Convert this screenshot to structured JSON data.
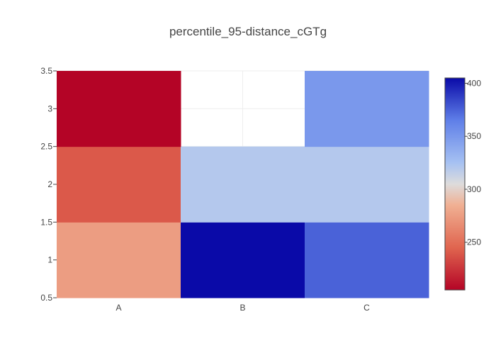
{
  "chart_data": {
    "type": "heatmap",
    "title": "percentile_95-distance_cGTg",
    "x_categories": [
      "A",
      "B",
      "C"
    ],
    "y_ticks": [
      "0.5",
      "1",
      "1.5",
      "2",
      "2.5",
      "3",
      "3.5"
    ],
    "y_range": [
      0.5,
      3.5
    ],
    "rows": [
      {
        "y": 1,
        "values": [
          275,
          405,
          375
        ]
      },
      {
        "y": 2,
        "values": [
          240,
          320,
          320
        ]
      },
      {
        "y": 3,
        "values": [
          205,
          null,
          350
        ]
      }
    ],
    "colorscale": {
      "name": "coolwarm_reversed",
      "min": 205,
      "max": 405,
      "stops": [
        [
          0.0,
          "#b40426"
        ],
        [
          0.2,
          "#e0654f"
        ],
        [
          0.4,
          "#f0b093"
        ],
        [
          0.5,
          "#dddcdc"
        ],
        [
          0.6,
          "#a6c1f2"
        ],
        [
          0.8,
          "#5f7fe8"
        ],
        [
          1.0,
          "#0a0aa8"
        ]
      ],
      "tick_labels": [
        "250",
        "300",
        "350",
        "400"
      ]
    },
    "colors": {
      "grid": "#eeeeee",
      "axis_text": "#444444"
    }
  }
}
